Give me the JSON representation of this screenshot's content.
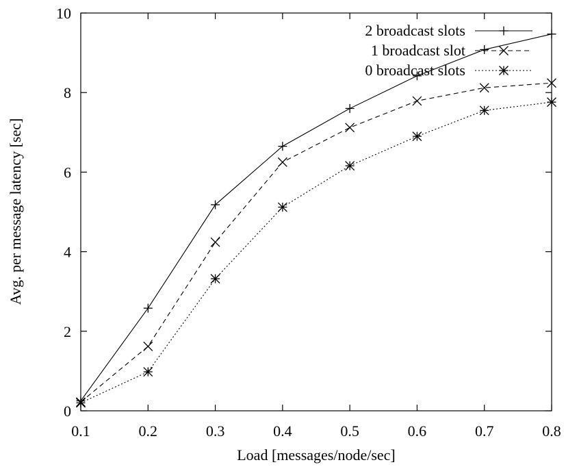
{
  "chart_data": {
    "type": "line",
    "title": "",
    "xlabel": "Load [messages/node/sec]",
    "ylabel": "Avg. per message latency [sec]",
    "xlim": [
      0.1,
      0.8
    ],
    "ylim": [
      0,
      10
    ],
    "x_ticks": [
      0.1,
      0.2,
      0.3,
      0.4,
      0.5,
      0.6,
      0.7,
      0.8
    ],
    "x_tick_labels": [
      "0.1",
      "0.2",
      "0.3",
      "0.4",
      "0.5",
      "0.6",
      "0.7",
      "0.8"
    ],
    "y_ticks": [
      0,
      2,
      4,
      6,
      8,
      10
    ],
    "y_tick_labels": [
      "0",
      "2",
      "4",
      "6",
      "8",
      "10"
    ],
    "grid": false,
    "legend_position": "top-right",
    "x": [
      0.1,
      0.2,
      0.3,
      0.4,
      0.5,
      0.6,
      0.7,
      0.8
    ],
    "series": [
      {
        "name": "2 broadcast slots",
        "marker": "plus",
        "dash": "solid",
        "values": [
          0.25,
          2.58,
          5.18,
          6.65,
          7.6,
          8.42,
          9.08,
          9.47
        ]
      },
      {
        "name": "1 broadcast slot",
        "marker": "cross",
        "dash": "dashed",
        "values": [
          0.22,
          1.62,
          4.24,
          6.25,
          7.12,
          7.79,
          8.12,
          8.24
        ]
      },
      {
        "name": "0 broadcast slots",
        "marker": "star",
        "dash": "dotted",
        "values": [
          0.2,
          0.98,
          3.32,
          5.12,
          6.16,
          6.9,
          7.55,
          7.76
        ]
      }
    ]
  }
}
